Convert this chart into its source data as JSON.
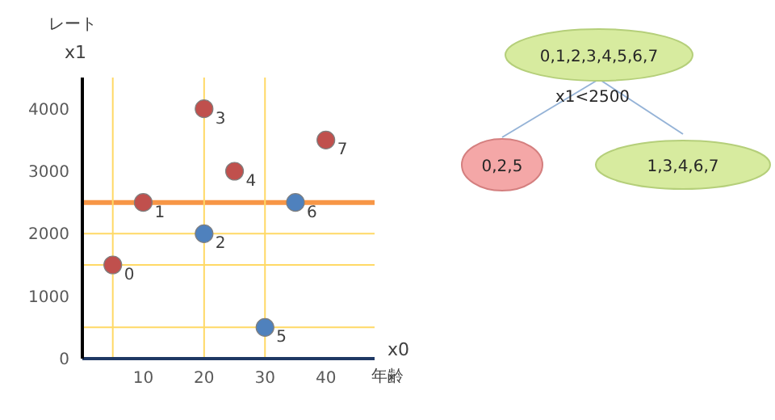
{
  "chart_data": [
    {
      "type": "scatter",
      "xlabel": "x0",
      "ylabel": "x1",
      "annotations": [
        "年齢",
        "レート",
        {
          "text": "0",
          "x": 5,
          "y": 1500
        },
        {
          "text": "1",
          "x": 10,
          "y": 2500
        },
        {
          "text": "2",
          "x": 20,
          "y": 2000
        },
        {
          "text": "3",
          "x": 20,
          "y": 4000
        },
        {
          "text": "4",
          "x": 25,
          "y": 3000
        },
        {
          "text": "5",
          "x": 30,
          "y": 500
        },
        {
          "text": "6",
          "x": 35,
          "y": 2500
        },
        {
          "text": "7",
          "x": 40,
          "y": 3500
        }
      ],
      "xlim": [
        0,
        48
      ],
      "xticks": [
        10,
        20,
        30,
        40
      ],
      "ylim": [
        0,
        4500
      ],
      "yticks": [
        0,
        1000,
        2000,
        3000,
        4000
      ],
      "grid": false,
      "marker": "circle",
      "series": [
        {
          "color": "#c0504d",
          "x": [
            5,
            10,
            20,
            25,
            40
          ],
          "values": [
            1500,
            2500,
            4000,
            3000,
            3500
          ]
        },
        {
          "color": "#4f81bd",
          "x": [
            20,
            30,
            35
          ],
          "values": [
            2000,
            500,
            2500
          ]
        }
      ],
      "ref_lines": [
        {
          "axis": "y",
          "value": 2500,
          "label": null,
          "color": "#f79646"
        },
        {
          "axis": "y",
          "value": 500,
          "label": null,
          "color": "#ffd966"
        },
        {
          "axis": "y",
          "value": 1500,
          "label": null,
          "color": "#ffd966"
        },
        {
          "axis": "y",
          "value": 2000,
          "label": null,
          "color": "#ffd966"
        },
        {
          "axis": "x",
          "value": 5,
          "label": null,
          "color": "#ffd966"
        },
        {
          "axis": "x",
          "value": 20,
          "label": null,
          "color": "#ffd966"
        },
        {
          "axis": "x",
          "value": 30,
          "label": null,
          "color": "#ffd966"
        }
      ]
    },
    {
      "type": "other",
      "annotations": [
        "0,1,2,3,4,5,6,7",
        "x1<2500",
        "0,2,5",
        "1,3,4,6,7"
      ]
    }
  ]
}
